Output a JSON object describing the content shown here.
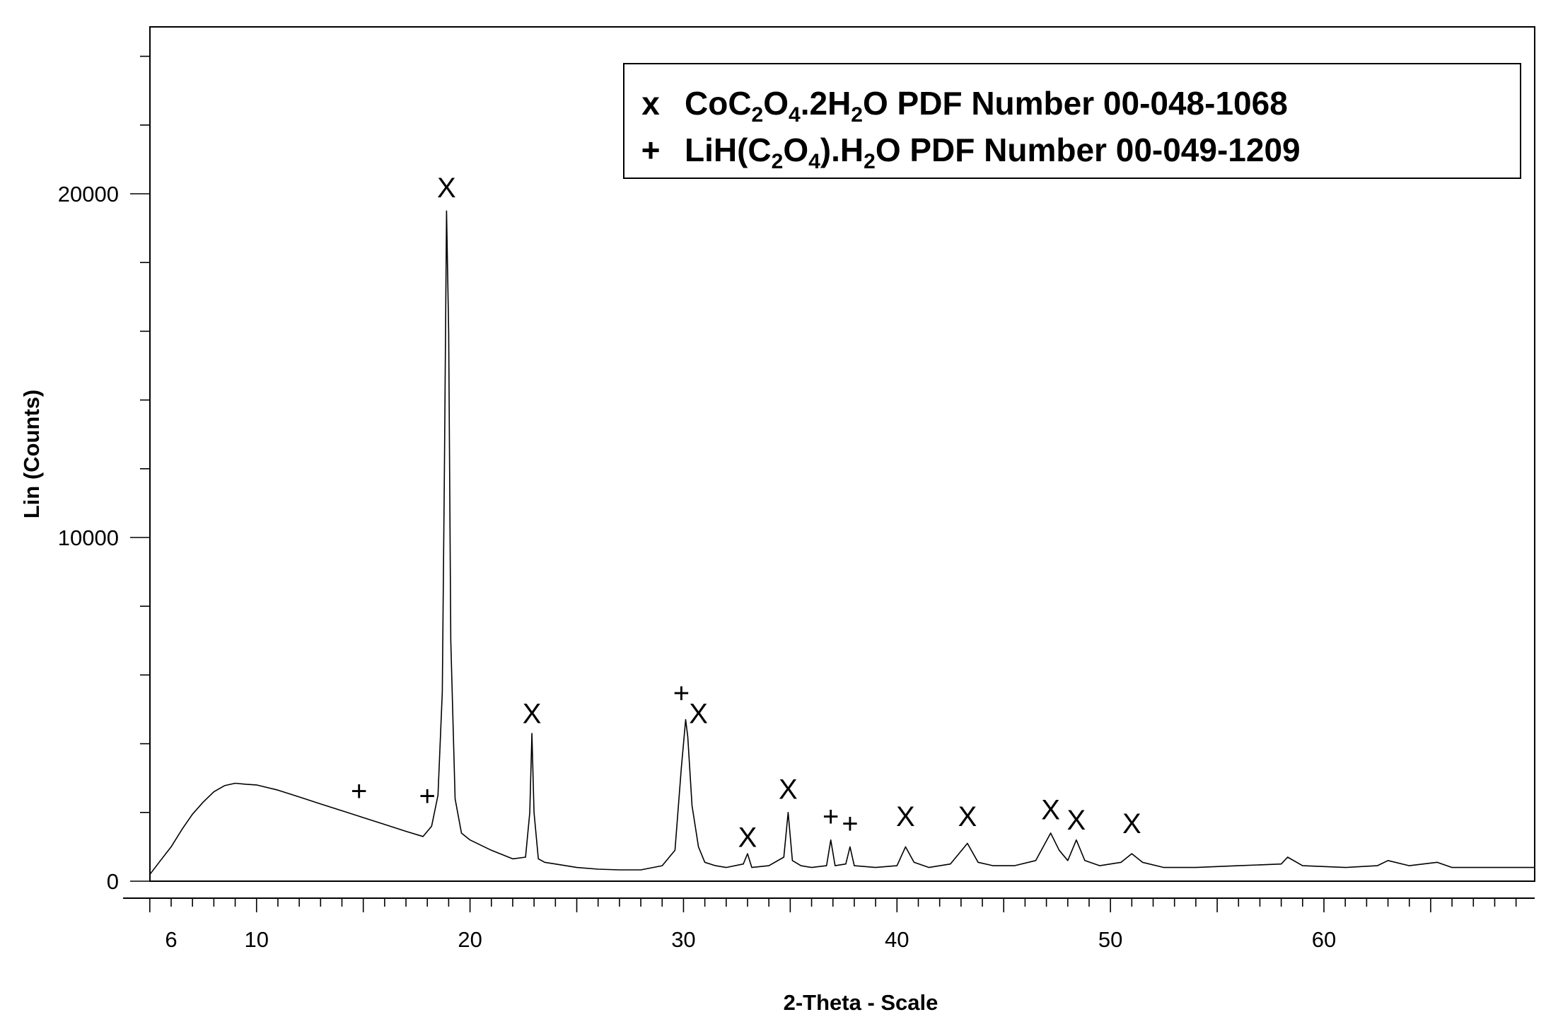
{
  "chart_data": {
    "type": "line",
    "title": "",
    "xlabel": "2-Theta - Scale",
    "ylabel": "Lin (Counts)",
    "xlim": [
      5,
      70
    ],
    "ylim": [
      0,
      25000
    ],
    "x_ticks": [
      6,
      10,
      20,
      30,
      40,
      50,
      60
    ],
    "x_tick_labels": [
      "6",
      "10",
      "20",
      "30",
      "40",
      "50",
      "60"
    ],
    "y_ticks": [
      0,
      10000,
      20000
    ],
    "y_tick_labels": [
      "0",
      "10000",
      "20000"
    ],
    "grid": false,
    "legend_position": "top-right",
    "line_color": "#000000",
    "legend": [
      {
        "symbol": "x",
        "parts": [
          [
            "CoC",
            ""
          ],
          [
            "2",
            "sub"
          ],
          [
            "O",
            ""
          ],
          [
            "4",
            "sub"
          ],
          [
            ".2H",
            ""
          ],
          [
            "2",
            "sub"
          ],
          [
            "O PDF Number 00-048-1068",
            ""
          ]
        ]
      },
      {
        "symbol": "+",
        "parts": [
          [
            "LiH(C",
            ""
          ],
          [
            "2",
            "sub"
          ],
          [
            "O",
            ""
          ],
          [
            "4",
            "sub"
          ],
          [
            ").H",
            ""
          ],
          [
            "2",
            "sub"
          ],
          [
            "O PDF Number 00-049-1209",
            ""
          ]
        ]
      }
    ],
    "peak_markers": [
      {
        "symbol": "+",
        "x": 14.8,
        "y": 2350
      },
      {
        "symbol": "+",
        "x": 18.0,
        "y": 2200
      },
      {
        "symbol": "x",
        "x": 18.9,
        "y": 19900
      },
      {
        "symbol": "x",
        "x": 22.9,
        "y": 4600
      },
      {
        "symbol": "+",
        "x": 29.9,
        "y": 5200
      },
      {
        "symbol": "x",
        "x": 30.7,
        "y": 4600
      },
      {
        "symbol": "x",
        "x": 33.0,
        "y": 1000
      },
      {
        "symbol": "x",
        "x": 34.9,
        "y": 2400
      },
      {
        "symbol": "+",
        "x": 36.9,
        "y": 1600
      },
      {
        "symbol": "+",
        "x": 37.8,
        "y": 1400
      },
      {
        "symbol": "x",
        "x": 40.4,
        "y": 1600
      },
      {
        "symbol": "x",
        "x": 43.3,
        "y": 1600
      },
      {
        "symbol": "x",
        "x": 47.2,
        "y": 1800
      },
      {
        "symbol": "x",
        "x": 48.4,
        "y": 1500
      },
      {
        "symbol": "x",
        "x": 51.0,
        "y": 1400
      }
    ],
    "series": [
      {
        "values_description_free": true,
        "x": [
          5.0,
          5.5,
          6.0,
          6.5,
          7.0,
          7.5,
          8.0,
          8.5,
          9.0,
          9.5,
          10.0,
          11.0,
          12.0,
          13.0,
          14.0,
          15.0,
          16.0,
          17.0,
          17.8,
          18.2,
          18.5,
          18.7,
          18.8,
          18.9,
          19.0,
          19.1,
          19.3,
          19.6,
          20.0,
          21.0,
          22.0,
          22.6,
          22.8,
          22.9,
          23.0,
          23.2,
          23.5,
          24.0,
          25.0,
          26.0,
          27.0,
          28.0,
          29.0,
          29.6,
          29.9,
          30.1,
          30.2,
          30.4,
          30.7,
          31.0,
          31.5,
          32.0,
          32.8,
          33.0,
          33.2,
          34.0,
          34.7,
          34.9,
          35.1,
          35.5,
          36.0,
          36.7,
          36.9,
          37.1,
          37.6,
          37.8,
          38.0,
          39.0,
          40.0,
          40.4,
          40.8,
          41.5,
          42.5,
          43.3,
          43.8,
          44.5,
          45.5,
          46.5,
          47.2,
          47.6,
          48.0,
          48.4,
          48.8,
          49.5,
          50.5,
          51.0,
          51.5,
          52.5,
          54.0,
          56.0,
          58.0,
          58.3,
          59.0,
          61.0,
          62.5,
          63.0,
          64.0,
          65.3,
          66.0,
          68.0,
          70.0
        ],
        "y": [
          200,
          600,
          1000,
          1500,
          1950,
          2300,
          2600,
          2780,
          2850,
          2820,
          2800,
          2650,
          2450,
          2250,
          2050,
          1850,
          1650,
          1450,
          1300,
          1600,
          2500,
          5500,
          12000,
          19500,
          16000,
          7000,
          2400,
          1400,
          1200,
          900,
          650,
          700,
          2000,
          4300,
          2000,
          650,
          550,
          500,
          400,
          350,
          330,
          330,
          450,
          900,
          3300,
          4700,
          4200,
          2200,
          1000,
          550,
          450,
          400,
          500,
          800,
          400,
          450,
          700,
          2000,
          600,
          450,
          400,
          450,
          1200,
          450,
          500,
          1000,
          450,
          400,
          450,
          1000,
          550,
          400,
          500,
          1100,
          550,
          450,
          450,
          600,
          1400,
          900,
          600,
          1200,
          600,
          450,
          550,
          800,
          550,
          400,
          400,
          450,
          500,
          700,
          450,
          400,
          450,
          600,
          450,
          550,
          400,
          400,
          400
        ]
      }
    ]
  }
}
